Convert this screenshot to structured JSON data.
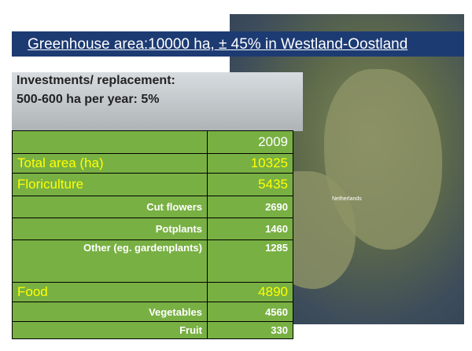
{
  "title": "Greenhouse area:10000 ha, ± 45% in Westland-Oostland",
  "subtitle": {
    "line1": "Investments/ replacement:",
    "line2": "500-600 ha per year: 5%"
  },
  "map_label": "Netherlands",
  "table": {
    "header": [
      "2009"
    ],
    "rows": [
      [
        "Total area (ha)",
        10325
      ],
      [
        "Floriculture",
        5435
      ],
      [
        "Cut flowers",
        2690
      ],
      [
        "Potplants",
        1460
      ],
      [
        "Other (eg. gardenplants)",
        1285
      ],
      [
        "Food",
        4890
      ],
      [
        "Vegetables",
        4560
      ],
      [
        "Fruit",
        330
      ]
    ]
  }
}
